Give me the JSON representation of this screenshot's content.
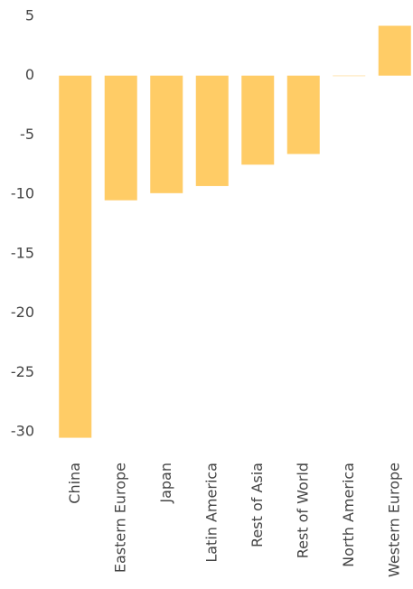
{
  "chart_data": {
    "type": "bar",
    "categories": [
      "China",
      "Eastern Europe",
      "Japan",
      "Latin America",
      "Rest of Asia",
      "Rest of World",
      "North America",
      "Western Europe"
    ],
    "values": [
      -30.5,
      -10.5,
      -9.9,
      -9.3,
      -7.5,
      -6.6,
      0,
      4.2
    ],
    "color": "#ffcc66",
    "ylim": [
      -31,
      5
    ],
    "yticks": [
      5,
      0,
      -5,
      -10,
      -15,
      -20,
      -25,
      -30
    ],
    "grid": false
  }
}
